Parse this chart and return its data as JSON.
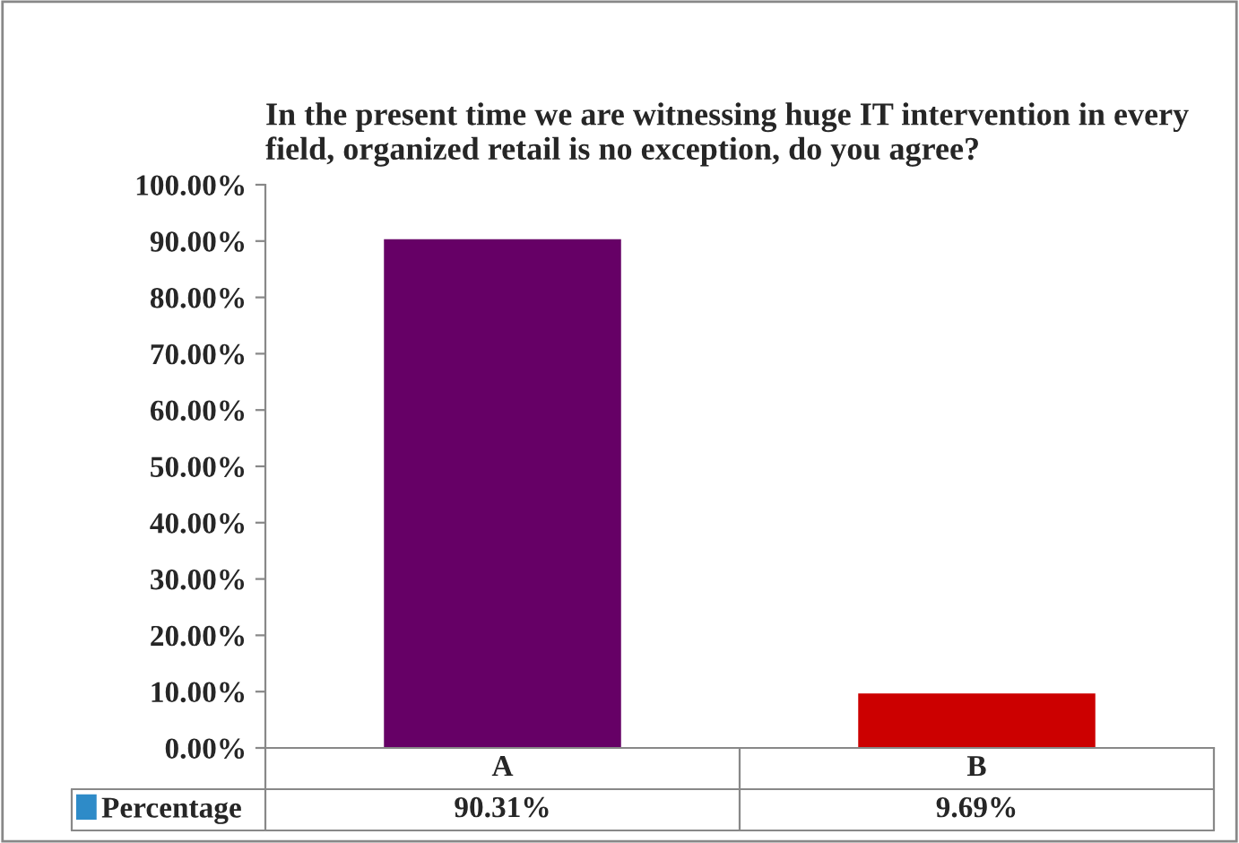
{
  "chart_data": {
    "type": "bar",
    "title": "In the present time we are witnessing huge IT intervention in every field, organized retail is no exception, do you agree?",
    "categories": [
      "A",
      "B"
    ],
    "series": [
      {
        "name": "Percentage",
        "color": "#2e8bc8",
        "colors": [
          "#660066",
          "#cc0000"
        ],
        "values": [
          90.31,
          9.69
        ],
        "value_labels": [
          "90.31%",
          "9.69%"
        ]
      }
    ],
    "ylim": [
      0,
      100
    ],
    "yticks": [
      {
        "value": 0,
        "label": "0.00%"
      },
      {
        "value": 10,
        "label": "10.00%"
      },
      {
        "value": 20,
        "label": "20.00%"
      },
      {
        "value": 30,
        "label": "30.00%"
      },
      {
        "value": 40,
        "label": "40.00%"
      },
      {
        "value": 50,
        "label": "50.00%"
      },
      {
        "value": 60,
        "label": "60.00%"
      },
      {
        "value": 70,
        "label": "70.00%"
      },
      {
        "value": 80,
        "label": "80.00%"
      },
      {
        "value": 90,
        "label": "90.00%"
      },
      {
        "value": 100,
        "label": "100.00%"
      }
    ],
    "grid": false,
    "legend": "bottom"
  }
}
